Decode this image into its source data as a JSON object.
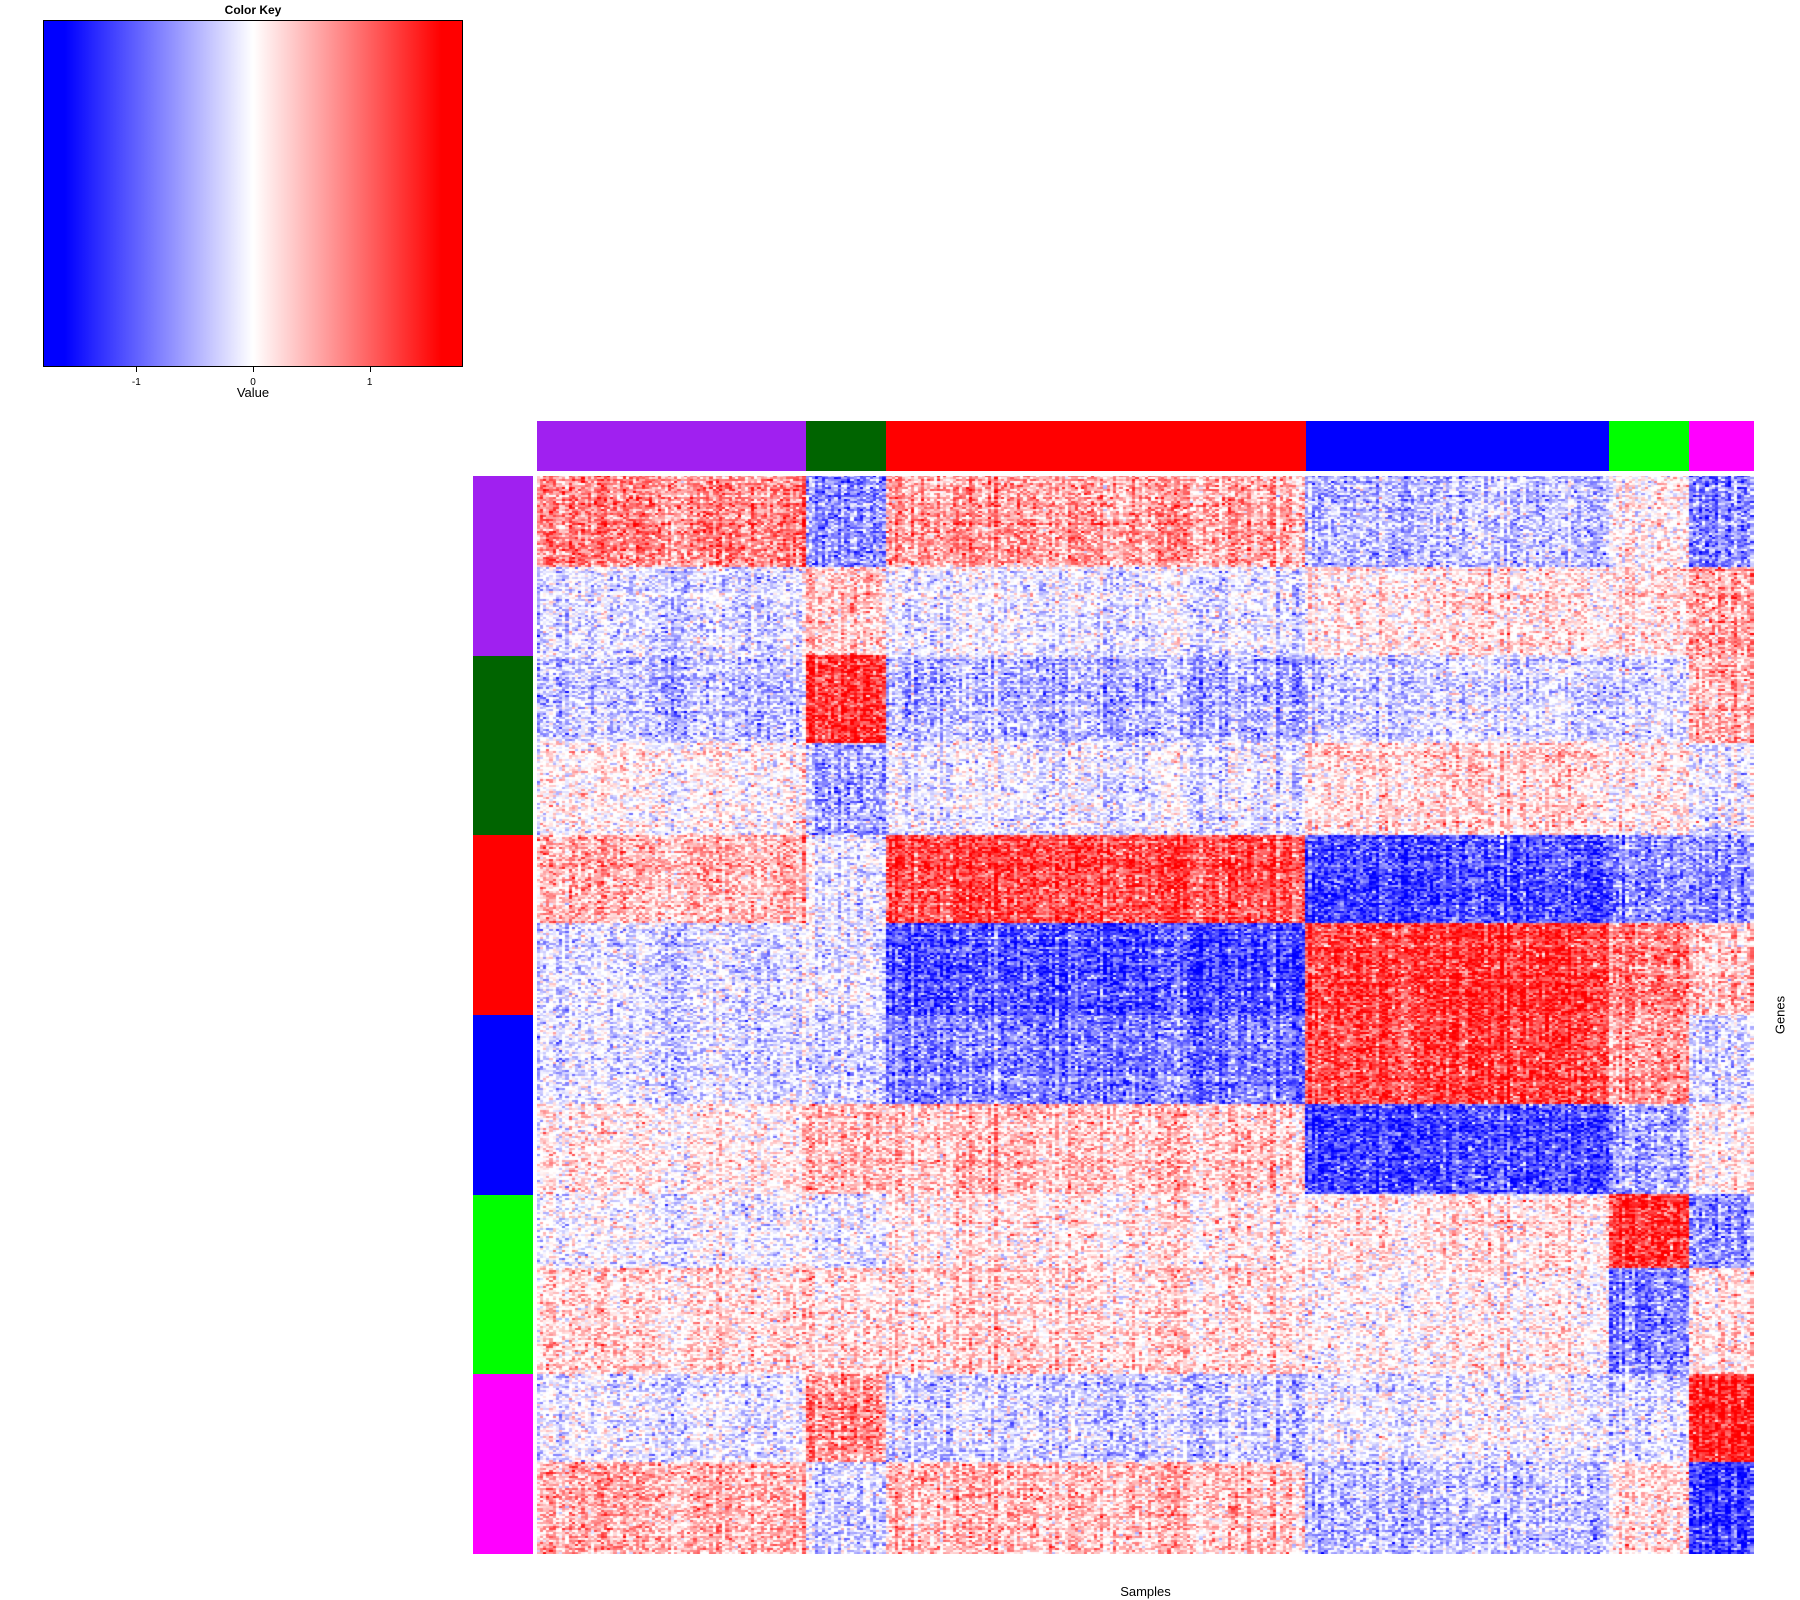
{
  "color_key": {
    "title": "Color Key",
    "xlabel": "Value",
    "ticks": [
      {
        "label": "-1",
        "value": -1
      },
      {
        "label": "0",
        "value": 0
      },
      {
        "label": "1",
        "value": 1
      }
    ],
    "range": [
      -1.8,
      1.8
    ],
    "colors": {
      "low": "#0000ff",
      "mid": "#ffffff",
      "high": "#ff0000"
    }
  },
  "chart_data": {
    "type": "heatmap",
    "xlabel": "Samples",
    "ylabel": "Genes",
    "value_range": [
      -1.8,
      1.8
    ],
    "sample_groups": [
      {
        "color": "#a020f0",
        "fraction": 0.221
      },
      {
        "color": "#006400",
        "fraction": 0.066
      },
      {
        "color": "#ff0000",
        "fraction": 0.345
      },
      {
        "color": "#0000ff",
        "fraction": 0.249
      },
      {
        "color": "#00ff00",
        "fraction": 0.066
      },
      {
        "color": "#ff00ff",
        "fraction": 0.053
      }
    ],
    "gene_groups": [
      {
        "color": "#a020f0",
        "fraction": 0.1667
      },
      {
        "color": "#006400",
        "fraction": 0.1667
      },
      {
        "color": "#ff0000",
        "fraction": 0.1667
      },
      {
        "color": "#0000ff",
        "fraction": 0.1667
      },
      {
        "color": "#00ff00",
        "fraction": 0.1667
      },
      {
        "color": "#ff00ff",
        "fraction": 0.1665
      }
    ],
    "row_blocks": [
      {
        "fraction": 0.085,
        "pattern": [
          0.9,
          -0.9,
          0.7,
          -0.5,
          0.1,
          -1.0
        ]
      },
      {
        "fraction": 0.082,
        "pattern": [
          -0.3,
          0.5,
          -0.2,
          0.3,
          0.3,
          0.7
        ]
      },
      {
        "fraction": 0.082,
        "pattern": [
          -0.5,
          1.5,
          -0.6,
          -0.3,
          -0.3,
          0.6
        ]
      },
      {
        "fraction": 0.085,
        "pattern": [
          0.1,
          -0.7,
          -0.2,
          0.4,
          0.2,
          -0.2
        ]
      },
      {
        "fraction": 0.082,
        "pattern": [
          0.6,
          -0.2,
          1.3,
          -1.3,
          -0.9,
          -0.9
        ]
      },
      {
        "fraction": 0.085,
        "pattern": [
          -0.3,
          -0.2,
          -1.3,
          1.5,
          1.0,
          0.5
        ]
      },
      {
        "fraction": 0.083,
        "pattern": [
          -0.3,
          -0.4,
          -1.0,
          1.4,
          0.8,
          -0.4
        ]
      },
      {
        "fraction": 0.083,
        "pattern": [
          0.2,
          0.6,
          0.5,
          -1.3,
          -0.7,
          0.1
        ]
      },
      {
        "fraction": 0.068,
        "pattern": [
          -0.1,
          -0.2,
          0.2,
          0.3,
          1.5,
          -0.9
        ]
      },
      {
        "fraction": 0.098,
        "pattern": [
          0.3,
          0.3,
          0.3,
          0.1,
          -1.0,
          0.2
        ]
      },
      {
        "fraction": 0.082,
        "pattern": [
          -0.2,
          0.9,
          -0.4,
          -0.1,
          -0.3,
          1.6
        ]
      },
      {
        "fraction": 0.085,
        "pattern": [
          0.6,
          -0.4,
          0.5,
          -0.5,
          0.3,
          -1.5
        ]
      }
    ]
  }
}
